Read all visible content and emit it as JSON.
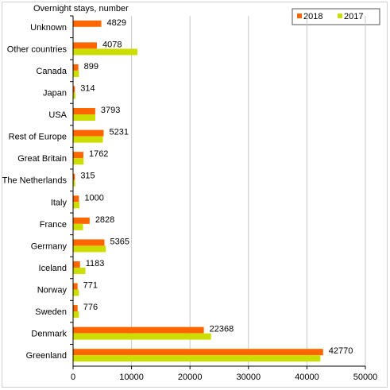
{
  "chart_data": {
    "type": "bar",
    "orientation": "horizontal",
    "title": "Overnight stays, number",
    "categories": [
      "Unknown",
      "Other countries",
      "Canada",
      "Japan",
      "USA",
      "Rest of Europe",
      "Great Britain",
      "The Netherlands",
      "Italy",
      "France",
      "Germany",
      "Iceland",
      "Norway",
      "Sweden",
      "Denmark",
      "Greenland"
    ],
    "series": [
      {
        "name": "2018",
        "color": "#ff6600",
        "values": [
          4829,
          4078,
          899,
          314,
          3793,
          5231,
          1762,
          315,
          1000,
          2828,
          5365,
          1183,
          771,
          776,
          22368,
          42770
        ]
      },
      {
        "name": "2017",
        "color": "#ccdd00",
        "values": [
          0,
          11000,
          1000,
          400,
          3800,
          5100,
          1800,
          350,
          1100,
          1700,
          5600,
          2100,
          1000,
          1000,
          23600,
          42300
        ]
      }
    ],
    "data_labels_series": "2018",
    "xlim": [
      0,
      50000
    ],
    "xticks": [
      "0",
      "10000",
      "20000",
      "30000",
      "40000",
      "50000"
    ],
    "xtick_values": [
      0,
      10000,
      20000,
      30000,
      40000,
      50000
    ],
    "grid": "vertical",
    "legend_position": "top-right"
  }
}
